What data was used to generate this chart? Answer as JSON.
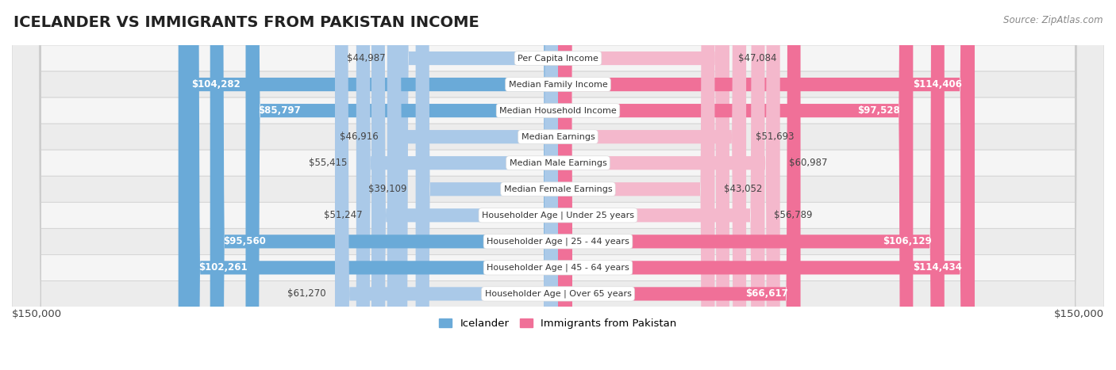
{
  "title": "ICELANDER VS IMMIGRANTS FROM PAKISTAN INCOME",
  "source": "Source: ZipAtlas.com",
  "categories": [
    "Per Capita Income",
    "Median Family Income",
    "Median Household Income",
    "Median Earnings",
    "Median Male Earnings",
    "Median Female Earnings",
    "Householder Age | Under 25 years",
    "Householder Age | 25 - 44 years",
    "Householder Age | 45 - 64 years",
    "Householder Age | Over 65 years"
  ],
  "icelander_values": [
    44987,
    104282,
    85797,
    46916,
    55415,
    39109,
    51247,
    95560,
    102261,
    61270
  ],
  "pakistan_values": [
    47084,
    114406,
    97528,
    51693,
    60987,
    43052,
    56789,
    106129,
    114434,
    66617
  ],
  "icelander_labels": [
    "$44,987",
    "$104,282",
    "$85,797",
    "$46,916",
    "$55,415",
    "$39,109",
    "$51,247",
    "$95,560",
    "$102,261",
    "$61,270"
  ],
  "pakistan_labels": [
    "$47,084",
    "$114,406",
    "$97,528",
    "$51,693",
    "$60,987",
    "$43,052",
    "$56,789",
    "$106,129",
    "$114,434",
    "$66,617"
  ],
  "icelander_color_light": "#aac9e8",
  "icelander_color_dark": "#6aaad8",
  "pakistan_color_light": "#f4b8cc",
  "pakistan_color_dark": "#f07098",
  "max_value": 150000,
  "legend_icelander": "Icelander",
  "legend_pakistan": "Immigrants from Pakistan",
  "bg_color": "#ffffff",
  "row_bg_color": "#f0f0f0",
  "row_bg_alt_color": "#e8e8e8",
  "label_fontsize": 9,
  "title_fontsize": 14,
  "axis_label": "$150,000",
  "ice_threshold": 65000,
  "pak_threshold": 65000
}
